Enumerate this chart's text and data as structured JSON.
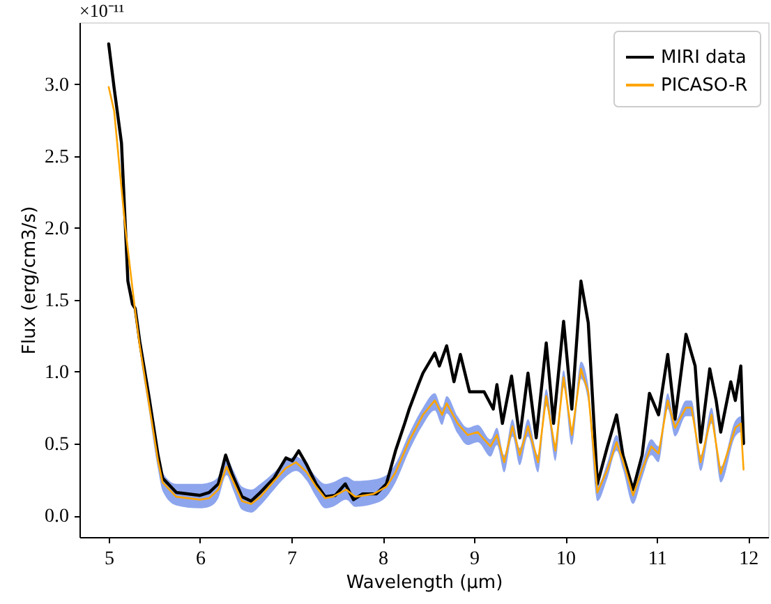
{
  "chart_data": {
    "type": "line",
    "xlabel": "Wavelength (µm)",
    "ylabel": "Flux (erg/cm3/s)",
    "annotations": [
      "×10⁻¹¹"
    ],
    "xlim": [
      4.68,
      12.22
    ],
    "ylim": [
      -0.15,
      3.43
    ],
    "xticks": [
      5,
      6,
      7,
      8,
      9,
      10,
      11,
      12
    ],
    "yticks": [
      {
        "value": 0,
        "label": "0.0"
      },
      0.5,
      {
        "value": 1,
        "label": "1.0"
      },
      1.5,
      {
        "value": 2,
        "label": "2.0"
      },
      2.5,
      {
        "value": 3,
        "label": "3.0"
      }
    ],
    "grid": false,
    "legend": "top right",
    "marker": "none",
    "line_style": "solid",
    "series": [
      {
        "name": "MIRI data",
        "color": "#000000",
        "x": [
          5.0,
          5.06,
          5.14,
          5.21,
          5.26,
          5.29,
          5.34,
          5.44,
          5.54,
          5.59,
          5.74,
          6.0,
          6.1,
          6.2,
          6.28,
          6.35,
          6.46,
          6.56,
          6.66,
          6.81,
          6.94,
          7.01,
          7.08,
          7.17,
          7.27,
          7.37,
          7.48,
          7.59,
          7.68,
          7.78,
          7.93,
          8.04,
          8.14,
          8.24,
          8.29,
          8.39,
          8.44,
          8.57,
          8.62,
          8.7,
          8.78,
          8.85,
          8.95,
          9.11,
          9.21,
          9.25,
          9.31,
          9.41,
          9.5,
          9.59,
          9.68,
          9.79,
          9.87,
          9.98,
          10.07,
          10.17,
          10.25,
          10.35,
          10.46,
          10.56,
          10.63,
          10.74,
          10.84,
          10.92,
          11.02,
          11.12,
          11.2,
          11.32,
          11.42,
          11.48,
          11.58,
          11.65,
          11.7,
          11.81,
          11.86,
          11.92,
          11.95
        ],
        "values": [
          3.28,
          2.97,
          2.59,
          1.63,
          1.47,
          1.44,
          1.21,
          0.83,
          0.42,
          0.26,
          0.16,
          0.14,
          0.16,
          0.22,
          0.42,
          0.29,
          0.13,
          0.1,
          0.16,
          0.26,
          0.4,
          0.38,
          0.45,
          0.35,
          0.22,
          0.13,
          0.14,
          0.22,
          0.11,
          0.15,
          0.15,
          0.22,
          0.45,
          0.64,
          0.74,
          0.91,
          0.99,
          1.13,
          1.04,
          1.18,
          0.93,
          1.12,
          0.86,
          0.86,
          0.74,
          0.91,
          0.64,
          0.97,
          0.54,
          0.99,
          0.54,
          1.2,
          0.64,
          1.35,
          0.74,
          1.63,
          1.34,
          0.22,
          0.48,
          0.7,
          0.42,
          0.18,
          0.42,
          0.85,
          0.7,
          1.12,
          0.67,
          1.26,
          1.04,
          0.51,
          1.02,
          0.8,
          0.58,
          0.93,
          0.8,
          1.04,
          0.5
        ]
      },
      {
        "name": "PICASO-R",
        "color": "#ffa500",
        "x": [
          5.0,
          5.06,
          5.18,
          5.29,
          5.34,
          5.44,
          5.54,
          5.59,
          5.74,
          6.0,
          6.1,
          6.2,
          6.29,
          6.36,
          6.46,
          6.56,
          6.66,
          6.81,
          6.94,
          7.05,
          7.17,
          7.27,
          7.37,
          7.45,
          7.6,
          7.7,
          7.9,
          8.04,
          8.14,
          8.29,
          8.44,
          8.57,
          8.65,
          8.7,
          8.82,
          8.93,
          9.04,
          9.18,
          9.25,
          9.33,
          9.42,
          9.5,
          9.59,
          9.7,
          9.79,
          9.89,
          9.98,
          10.07,
          10.17,
          10.25,
          10.35,
          10.46,
          10.56,
          10.63,
          10.74,
          10.84,
          10.94,
          11.02,
          11.12,
          11.2,
          11.32,
          11.38,
          11.48,
          11.6,
          11.7,
          11.86,
          11.92,
          11.95
        ],
        "values": [
          2.98,
          2.81,
          2.01,
          1.42,
          1.18,
          0.78,
          0.38,
          0.23,
          0.13,
          0.11,
          0.12,
          0.18,
          0.34,
          0.24,
          0.1,
          0.08,
          0.13,
          0.24,
          0.33,
          0.37,
          0.3,
          0.2,
          0.12,
          0.13,
          0.18,
          0.13,
          0.15,
          0.2,
          0.3,
          0.52,
          0.7,
          0.8,
          0.7,
          0.78,
          0.64,
          0.56,
          0.58,
          0.48,
          0.56,
          0.37,
          0.62,
          0.42,
          0.62,
          0.37,
          0.83,
          0.45,
          0.96,
          0.56,
          1.02,
          0.86,
          0.16,
          0.32,
          0.51,
          0.38,
          0.14,
          0.32,
          0.48,
          0.43,
          0.8,
          0.61,
          0.75,
          0.75,
          0.37,
          0.7,
          0.29,
          0.61,
          0.64,
          0.32
        ],
        "lower": [
          2.98,
          2.8,
          1.99,
          1.39,
          1.14,
          0.73,
          0.32,
          0.17,
          0.07,
          0.05,
          0.06,
          0.12,
          0.28,
          0.18,
          0.04,
          0.02,
          0.07,
          0.18,
          0.27,
          0.31,
          0.24,
          0.13,
          0.05,
          0.06,
          0.11,
          0.06,
          0.08,
          0.13,
          0.23,
          0.45,
          0.63,
          0.73,
          0.63,
          0.71,
          0.57,
          0.49,
          0.51,
          0.41,
          0.49,
          0.3,
          0.55,
          0.35,
          0.55,
          0.3,
          0.76,
          0.38,
          0.89,
          0.49,
          0.95,
          0.79,
          0.1,
          0.26,
          0.45,
          0.32,
          0.08,
          0.26,
          0.42,
          0.37,
          0.74,
          0.55,
          0.69,
          0.69,
          0.31,
          0.64,
          0.23,
          0.55,
          0.58,
          0.3
        ],
        "upper": [
          2.99,
          2.83,
          2.03,
          1.45,
          1.22,
          0.83,
          0.44,
          0.3,
          0.22,
          0.22,
          0.23,
          0.27,
          0.4,
          0.32,
          0.2,
          0.18,
          0.22,
          0.3,
          0.38,
          0.41,
          0.35,
          0.27,
          0.22,
          0.23,
          0.27,
          0.24,
          0.25,
          0.28,
          0.36,
          0.57,
          0.75,
          0.85,
          0.75,
          0.83,
          0.69,
          0.61,
          0.63,
          0.53,
          0.61,
          0.42,
          0.67,
          0.47,
          0.67,
          0.42,
          0.88,
          0.5,
          1.01,
          0.61,
          1.07,
          0.91,
          0.21,
          0.37,
          0.56,
          0.43,
          0.19,
          0.37,
          0.53,
          0.48,
          0.85,
          0.66,
          0.8,
          0.8,
          0.42,
          0.75,
          0.34,
          0.66,
          0.69,
          0.35
        ]
      }
    ]
  }
}
